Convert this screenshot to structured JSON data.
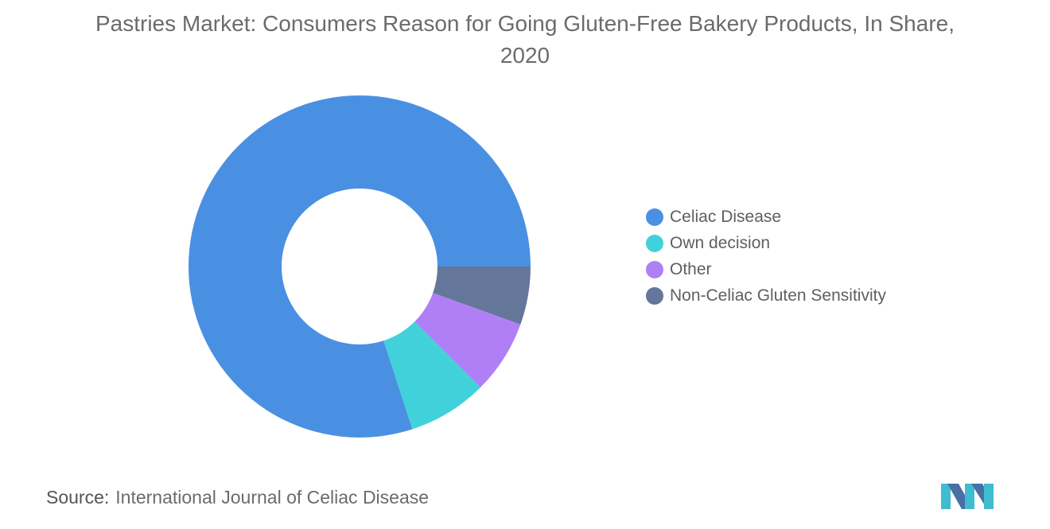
{
  "title": "Pastries Market: Consumers Reason for Going Gluten-Free Bakery Products, In Share, 2020",
  "source": {
    "label": "Source:",
    "text": "International Journal of Celiac Disease"
  },
  "chart_data": {
    "type": "pie",
    "variant": "donut",
    "title": "Pastries Market: Consumers Reason for Going Gluten-Free Bakery Products, In Share, 2020",
    "categories": [
      "Celiac Disease",
      "Own decision",
      "Other",
      "Non-Celiac Gluten Sensitivity"
    ],
    "values": [
      80,
      7.5,
      7,
      5.5
    ],
    "colors": [
      "#4a90e2",
      "#40d1db",
      "#b07ff5",
      "#647699"
    ],
    "legend": "right",
    "data_labels": false
  },
  "logo": {
    "icon": "mordor-intelligence-logo-icon",
    "colors": [
      "#3fbcd0",
      "#4a6fa5"
    ]
  }
}
